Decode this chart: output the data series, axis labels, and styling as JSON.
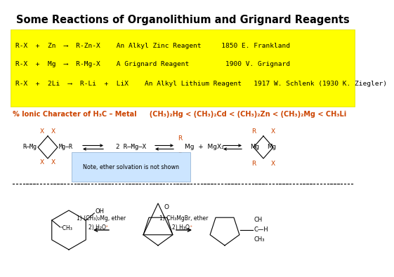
{
  "title": "Some Reactions of Organolithium and Grignard Reagents",
  "bg_color": "#ffffff",
  "yellow_box_color": "#ffff00",
  "rxn1": "R-X  +  Zn  ⟶  R-Zn-X    An Alkyl Zinc Reagent     1850 E. Frankland",
  "rxn2": "R-X  +  Mg  ⟶  R-Mg-X    A Grignard Reagent         1900 V. Grignard",
  "rxn3": "R-X  +  2Li  ⟶  R-Li  +  LiX    An Alkyl Lithium Reagent   1917 W. Schlenk (1930 K. Ziegler)",
  "ionic_text": "% Ionic Character of H₃C – Metal   (CH₃)₂Hg < (CH₃)₂Cd < (CH₃)₂Zn < (CH₃)₂Mg < CH₃Li",
  "note_text": "Note, ether solvation is not shown",
  "note_bg": "#cce5ff",
  "orange_color": "#cc4400",
  "black_color": "#000000"
}
